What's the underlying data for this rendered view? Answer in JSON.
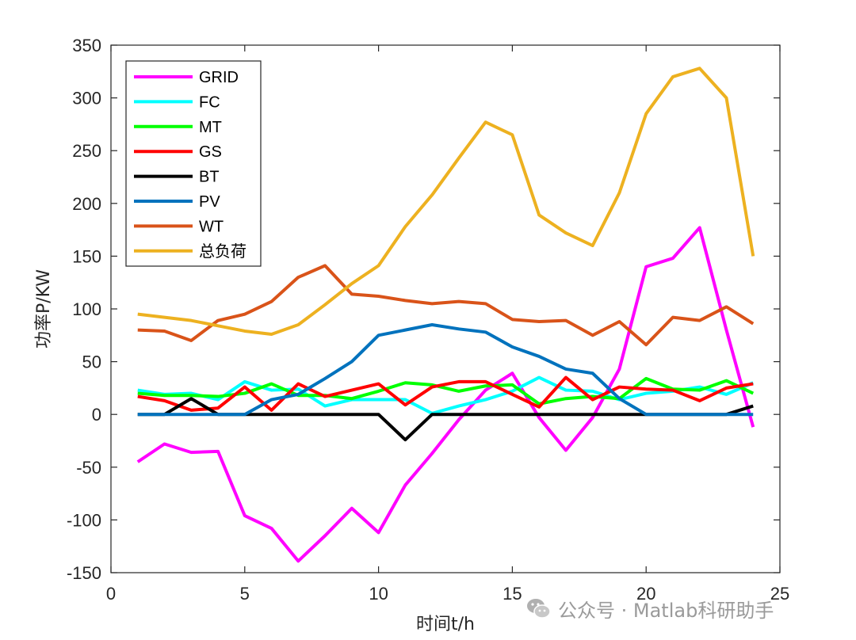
{
  "chart_data": {
    "type": "line",
    "title": "",
    "xlabel": "时间t/h",
    "ylabel": "功率P/KW",
    "xlim": [
      0,
      25
    ],
    "ylim": [
      -150,
      350
    ],
    "xticks": [
      0,
      5,
      10,
      15,
      20,
      25
    ],
    "yticks": [
      -150,
      -100,
      -50,
      0,
      50,
      100,
      150,
      200,
      250,
      300,
      350
    ],
    "legend_position": "top-left",
    "grid": false,
    "x": [
      1,
      2,
      3,
      4,
      5,
      6,
      7,
      8,
      9,
      10,
      11,
      12,
      13,
      14,
      15,
      16,
      17,
      18,
      19,
      20,
      21,
      22,
      23,
      24
    ],
    "series": [
      {
        "name": "GRID",
        "color": "#ff00ff",
        "values": [
          -45,
          -28,
          -36,
          -35,
          -96,
          -108,
          -139,
          -115,
          -89,
          -112,
          -67,
          -37,
          -5,
          23,
          39,
          -3,
          -34,
          -3,
          43,
          140,
          148,
          177,
          80,
          -12
        ]
      },
      {
        "name": "FC",
        "color": "#00ffff",
        "values": [
          23,
          19,
          20,
          14,
          31,
          23,
          24,
          8,
          14,
          14,
          14,
          1,
          8,
          14,
          22,
          35,
          23,
          22,
          14,
          20,
          22,
          26,
          19,
          30
        ]
      },
      {
        "name": "MT",
        "color": "#00ff00",
        "values": [
          20,
          18,
          18,
          17,
          20,
          29,
          18,
          18,
          15,
          22,
          30,
          28,
          22,
          27,
          28,
          10,
          15,
          17,
          15,
          34,
          24,
          23,
          32,
          20
        ]
      },
      {
        "name": "GS",
        "color": "#ff0000",
        "values": [
          17,
          13,
          4,
          6,
          26,
          4,
          29,
          17,
          23,
          29,
          9,
          26,
          31,
          31,
          19,
          7,
          35,
          14,
          26,
          24,
          23,
          13,
          25,
          29
        ]
      },
      {
        "name": "BT",
        "color": "#000000",
        "values": [
          0,
          0,
          15,
          0,
          0,
          0,
          0,
          0,
          0,
          0,
          -24,
          0,
          0,
          0,
          0,
          0,
          0,
          0,
          0,
          0,
          0,
          0,
          0,
          8
        ]
      },
      {
        "name": "PV",
        "color": "#0072bd",
        "values": [
          0,
          0,
          0,
          0,
          0,
          14,
          19,
          34,
          50,
          75,
          80,
          85,
          81,
          78,
          64,
          55,
          43,
          39,
          15,
          0,
          0,
          0,
          0,
          0
        ]
      },
      {
        "name": "WT",
        "color": "#d95319",
        "values": [
          80,
          79,
          70,
          89,
          95,
          107,
          130,
          141,
          114,
          112,
          108,
          105,
          107,
          105,
          90,
          88,
          89,
          75,
          88,
          66,
          92,
          89,
          102,
          86
        ]
      },
      {
        "name": "总负荷",
        "color": "#edb120",
        "values": [
          95,
          92,
          89,
          84,
          79,
          76,
          85,
          104,
          124,
          141,
          178,
          208,
          243,
          277,
          265,
          189,
          172,
          160,
          210,
          285,
          320,
          328,
          300,
          150
        ]
      }
    ]
  },
  "watermark": {
    "text": "公众号 · Matlab科研助手",
    "icon": "wechat-icon"
  }
}
